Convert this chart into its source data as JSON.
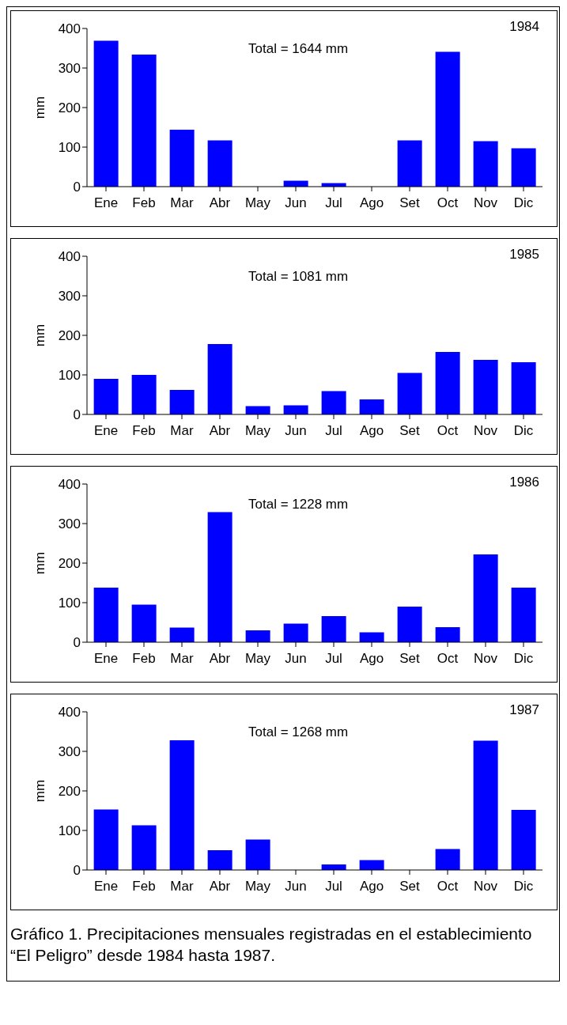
{
  "chart_data": [
    {
      "type": "bar",
      "title": "1984",
      "ylabel": "mm",
      "categories": [
        "Ene",
        "Feb",
        "Mar",
        "Abr",
        "May",
        "Jun",
        "Jul",
        "Ago",
        "Set",
        "Oct",
        "Nov",
        "Dic"
      ],
      "values": [
        369,
        334,
        144,
        117,
        0,
        15,
        9,
        0,
        117,
        341,
        115,
        97
      ],
      "color": "#0000ff",
      "ylim": [
        0,
        400
      ],
      "yticks": [
        0,
        100,
        200,
        300,
        400
      ],
      "grid": false,
      "legend": false,
      "annotations": [
        "Total = 1644 mm"
      ]
    },
    {
      "type": "bar",
      "title": "1985",
      "ylabel": "mm",
      "categories": [
        "Ene",
        "Feb",
        "Mar",
        "Abr",
        "May",
        "Jun",
        "Jul",
        "Ago",
        "Set",
        "Oct",
        "Nov",
        "Dic"
      ],
      "values": [
        90,
        100,
        62,
        178,
        21,
        23,
        59,
        38,
        105,
        158,
        138,
        132
      ],
      "color": "#0000ff",
      "ylim": [
        0,
        400
      ],
      "yticks": [
        0,
        100,
        200,
        300,
        400
      ],
      "grid": false,
      "legend": false,
      "annotations": [
        "Total = 1081 mm"
      ]
    },
    {
      "type": "bar",
      "title": "1986",
      "ylabel": "mm",
      "categories": [
        "Ene",
        "Feb",
        "Mar",
        "Abr",
        "May",
        "Jun",
        "Jul",
        "Ago",
        "Set",
        "Oct",
        "Nov",
        "Dic"
      ],
      "values": [
        138,
        95,
        37,
        329,
        30,
        47,
        66,
        25,
        90,
        38,
        222,
        138
      ],
      "color": "#0000ff",
      "ylim": [
        0,
        400
      ],
      "yticks": [
        0,
        100,
        200,
        300,
        400
      ],
      "grid": false,
      "legend": false,
      "annotations": [
        "Total = 1228 mm"
      ]
    },
    {
      "type": "bar",
      "title": "1987",
      "ylabel": "mm",
      "categories": [
        "Ene",
        "Feb",
        "Mar",
        "Abr",
        "May",
        "Jun",
        "Jul",
        "Ago",
        "Set",
        "Oct",
        "Nov",
        "Dic"
      ],
      "values": [
        153,
        113,
        328,
        50,
        77,
        0,
        14,
        25,
        0,
        53,
        327,
        152
      ],
      "color": "#0000ff",
      "ylim": [
        0,
        400
      ],
      "yticks": [
        0,
        100,
        200,
        300,
        400
      ],
      "grid": false,
      "legend": false,
      "annotations": [
        "Total = 1268 mm",
        "Gráfico 1.  Precipitaciones mensuales registradas en el establecimiento “El Peligro” desde 1984 hasta 1987."
      ]
    }
  ]
}
